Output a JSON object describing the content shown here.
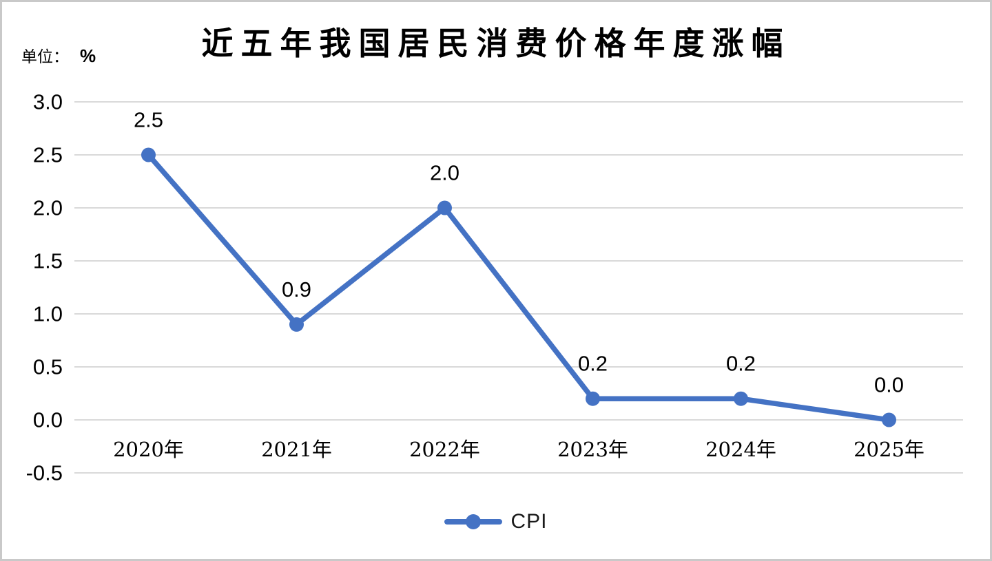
{
  "page": {
    "title": "近五年我国居民消费价格年度涨幅",
    "unit_prefix": "单位：",
    "unit_value": "%"
  },
  "legend": {
    "label": "CPI"
  },
  "chart_data": {
    "type": "line",
    "title": "近五年我国居民消费价格年度涨幅",
    "unit": "%",
    "categories": [
      "2020年",
      "2021年",
      "2022年",
      "2023年",
      "2024年",
      "2025年"
    ],
    "series": [
      {
        "name": "CPI",
        "values": [
          2.5,
          0.9,
          2.0,
          0.2,
          0.2,
          0.0
        ]
      }
    ],
    "data_labels": [
      "2.5",
      "0.9",
      "2.0",
      "0.2",
      "0.2",
      "0.0"
    ],
    "xlabel": "",
    "ylabel": "单位：%",
    "ylim": [
      -0.5,
      3.0
    ],
    "ytick_values": [
      3.0,
      2.5,
      2.0,
      1.5,
      1.0,
      0.5,
      0.0,
      -0.5
    ],
    "ytick_labels": [
      "3.0",
      "2.5",
      "2.0",
      "1.5",
      "1.0",
      "0.5",
      "0.0",
      "-0.5"
    ],
    "grid": true,
    "legend_position": "bottom",
    "colors": {
      "line": "#4472C4",
      "marker": "#4472C4",
      "gridline": "#D9D9D9",
      "text": "#000000",
      "background": "#FFFFFF",
      "page_border": "#C9C9C9"
    }
  }
}
